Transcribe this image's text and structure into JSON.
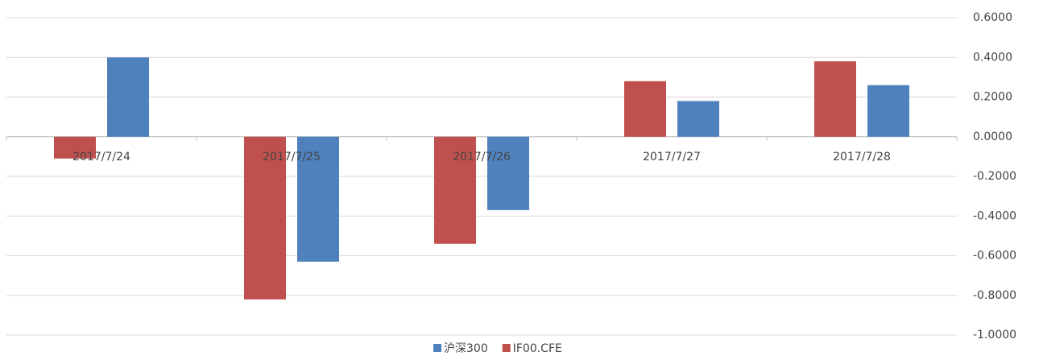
{
  "chart_data": {
    "type": "bar",
    "categories": [
      "2017/7/24",
      "2017/7/25",
      "2017/7/26",
      "2017/7/27",
      "2017/7/28"
    ],
    "series": [
      {
        "name": "沪深300",
        "color": "#4f81bd",
        "values": [
          0.4,
          -0.63,
          -0.37,
          0.18,
          0.26
        ]
      },
      {
        "name": "IF00.CFE",
        "color": "#c0504d",
        "values": [
          -0.11,
          -0.82,
          -0.54,
          0.28,
          0.38
        ]
      }
    ],
    "ylim": [
      -1.0,
      0.6
    ],
    "yticks": [
      {
        "value": 0.6,
        "label": "0.6000"
      },
      {
        "value": 0.4,
        "label": "0.4000"
      },
      {
        "value": 0.2,
        "label": "0.2000"
      },
      {
        "value": 0,
        "label": "0.0000"
      },
      {
        "value": -0.2,
        "label": "-0.2000"
      },
      {
        "value": -0.4,
        "label": "-0.4000"
      },
      {
        "value": -0.6,
        "label": "-0.6000"
      },
      {
        "value": -0.8,
        "label": "-0.8000"
      },
      {
        "value": -1.0,
        "label": "-1.0000"
      }
    ],
    "grid": true,
    "legend": "bottom"
  }
}
